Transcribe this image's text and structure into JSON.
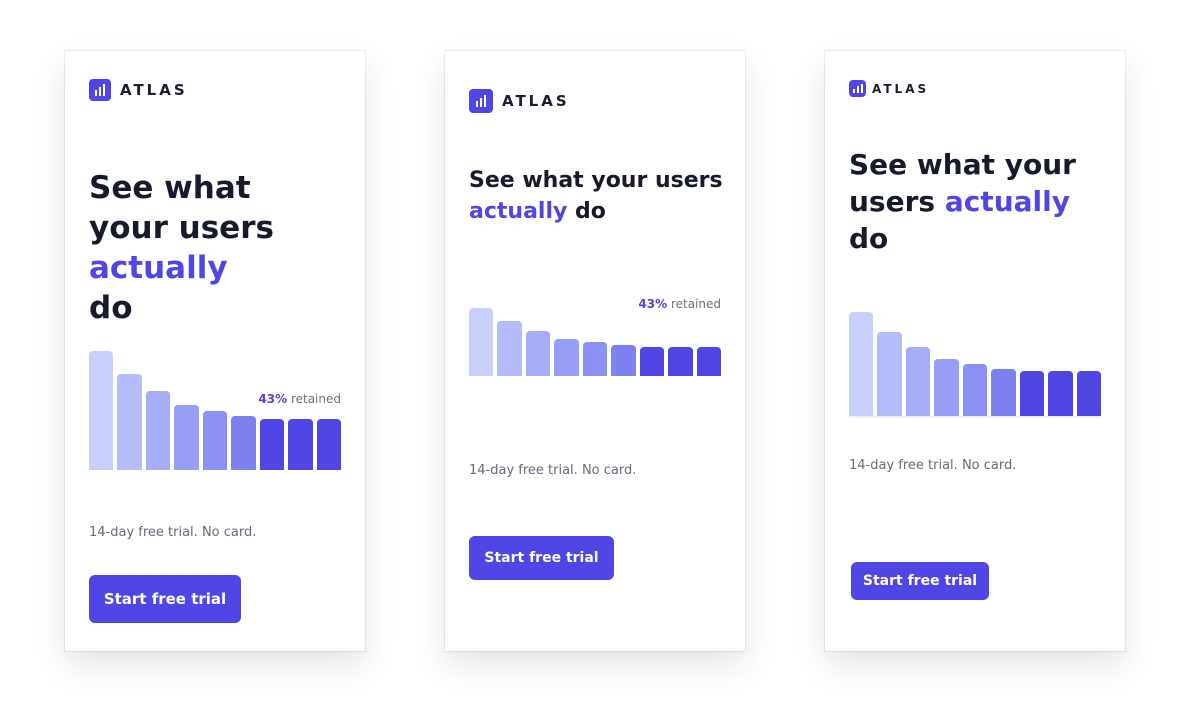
{
  "bars": [
    100,
    81,
    66,
    55,
    50,
    45,
    43,
    43,
    43
  ],
  "bar_colors": [
    "#c9cffb",
    "#b4bcf9",
    "#a5adf7",
    "#969ff5",
    "#8a91f2",
    "#7d82ef",
    "#4f46e5",
    "#4f46e5",
    "#4f46e5"
  ],
  "cards": [
    {
      "brand": "ATLAS",
      "headline": {
        "before": "See what your users",
        "highlight": "actually",
        "after": "do"
      },
      "stat": {
        "value": "43%",
        "label": "retained"
      },
      "note": "14-day free trial. No card.",
      "cta": "Start free trial"
    },
    {
      "brand": "ATLAS",
      "headline": {
        "before": "See what your users",
        "highlight": "actually",
        "after": "do"
      },
      "stat": {
        "value": "43%",
        "label": "retained"
      },
      "note": "14-day free trial. No card.",
      "cta": "Start free trial"
    },
    {
      "brand": "ATLAS",
      "headline": {
        "before": "See what your users",
        "highlight": "actually",
        "after": "do"
      },
      "note": "14-day free trial. No card.",
      "cta": "Start free trial"
    }
  ]
}
